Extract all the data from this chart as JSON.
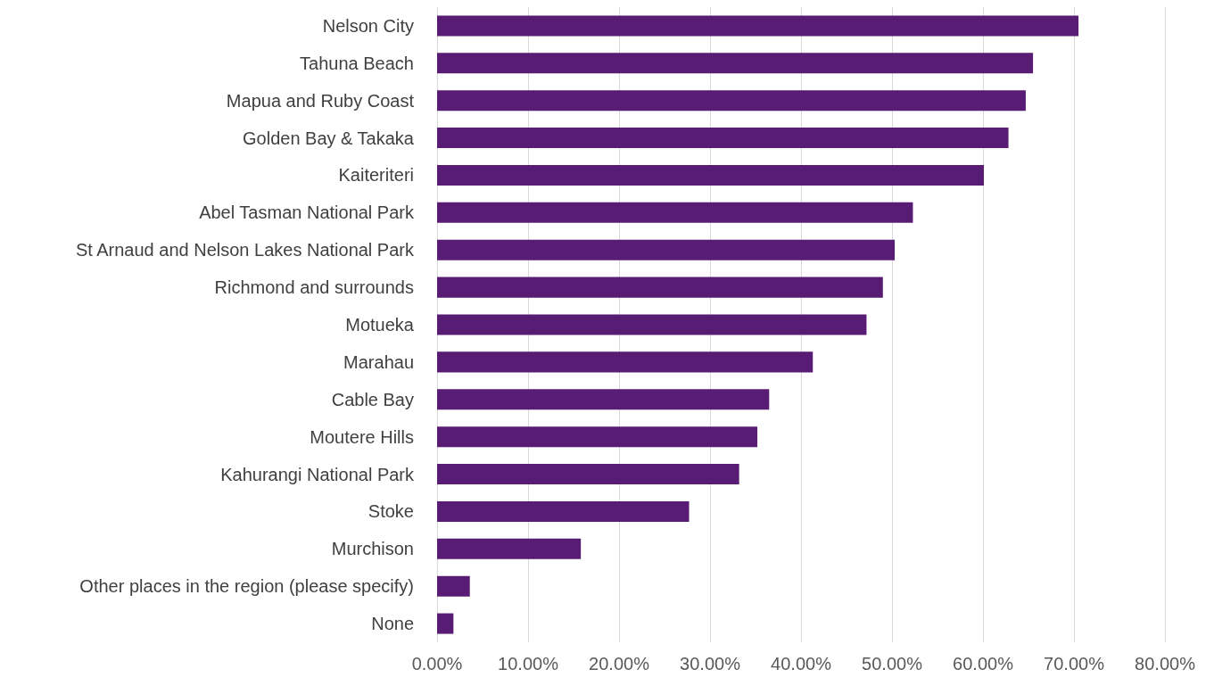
{
  "chart_data": {
    "type": "bar",
    "orientation": "horizontal",
    "categories": [
      "Nelson City",
      "Tahuna Beach",
      "Mapua and Ruby Coast",
      "Golden Bay & Takaka",
      "Kaiteriteri",
      "Abel Tasman National Park",
      "St Arnaud and Nelson Lakes National Park",
      "Richmond and surrounds",
      "Motueka",
      "Marahau",
      "Cable Bay",
      "Moutere Hills",
      "Kahurangi National Park",
      "Stoke",
      "Murchison",
      "Other places in the region (please specify)",
      "None"
    ],
    "values": [
      70.5,
      65.5,
      64.7,
      62.8,
      60.1,
      52.3,
      50.3,
      49.0,
      47.2,
      41.3,
      36.5,
      35.2,
      33.2,
      27.7,
      15.8,
      3.6,
      1.8
    ],
    "color": "#581c74",
    "xlim": [
      0,
      80
    ],
    "xticks": [
      {
        "value": 0,
        "label": "0.00%"
      },
      {
        "value": 10,
        "label": "10.00%"
      },
      {
        "value": 20,
        "label": "20.00%"
      },
      {
        "value": 30,
        "label": "30.00%"
      },
      {
        "value": 40,
        "label": "40.00%"
      },
      {
        "value": 50,
        "label": "50.00%"
      },
      {
        "value": 60,
        "label": "60.00%"
      },
      {
        "value": 70,
        "label": "70.00%"
      },
      {
        "value": 80,
        "label": "80.00%"
      }
    ],
    "grid": "x"
  }
}
